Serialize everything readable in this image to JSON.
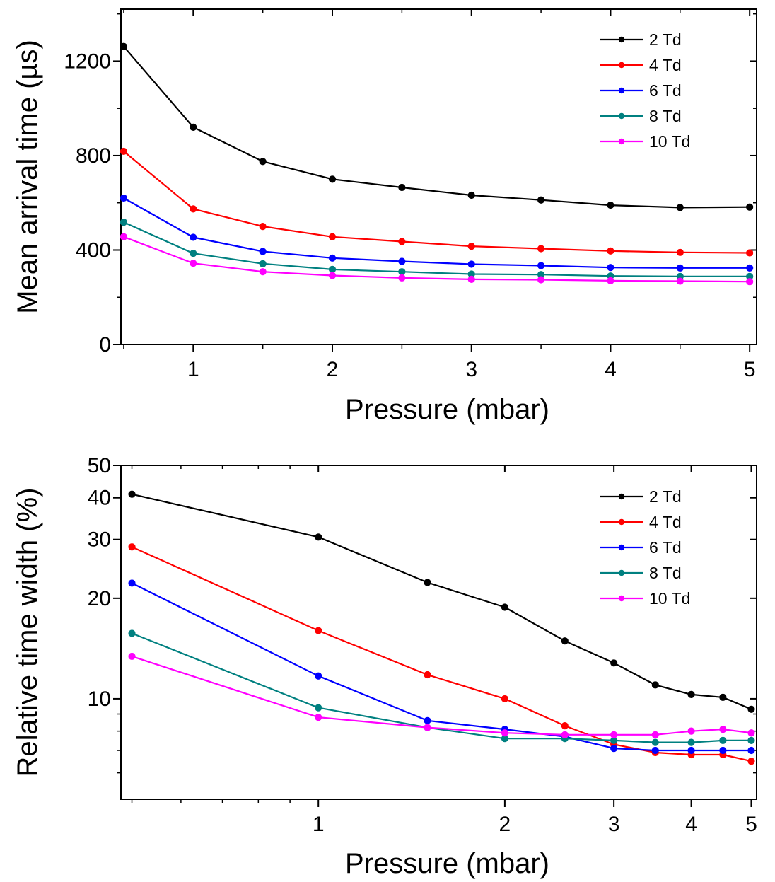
{
  "chart_data": [
    {
      "type": "line",
      "title": "",
      "xlabel": "Pressure (mbar)",
      "ylabel": "Mean arrival time (µs)",
      "xscale": "linear",
      "yscale": "linear",
      "xlim": [
        0.48,
        5.05
      ],
      "ylim": [
        0,
        1420
      ],
      "xticks": [
        1,
        2,
        3,
        4,
        5
      ],
      "xtick_labels": [
        "1",
        "2",
        "3",
        "4",
        "5"
      ],
      "yticks": [
        0,
        400,
        800,
        1200
      ],
      "ytick_labels": [
        "0",
        "400",
        "800",
        "1200"
      ],
      "legend_position": "top-right",
      "grid": false,
      "x": [
        0.5,
        1,
        1.5,
        2,
        2.5,
        3,
        3.5,
        4,
        4.5,
        5
      ],
      "series": [
        {
          "name": "2 Td",
          "color": "#000000",
          "values": [
            1262,
            920,
            775,
            700,
            665,
            632,
            612,
            590,
            580,
            582
          ]
        },
        {
          "name": "4 Td",
          "color": "#ff0000",
          "values": [
            818,
            574,
            500,
            456,
            436,
            416,
            406,
            396,
            390,
            388
          ]
        },
        {
          "name": "6 Td",
          "color": "#0000ff",
          "values": [
            620,
            454,
            394,
            366,
            352,
            340,
            334,
            326,
            324,
            324
          ]
        },
        {
          "name": "8 Td",
          "color": "#008080",
          "values": [
            518,
            386,
            342,
            318,
            308,
            298,
            296,
            290,
            288,
            288
          ]
        },
        {
          "name": "10 Td",
          "color": "#ff00ff",
          "values": [
            456,
            344,
            308,
            292,
            282,
            276,
            274,
            270,
            268,
            266
          ]
        }
      ]
    },
    {
      "type": "line",
      "title": "",
      "xlabel": "Pressure (mbar)",
      "ylabel": "Relative time width (%)",
      "xscale": "log",
      "yscale": "log",
      "xlim": [
        0.48,
        5.1
      ],
      "ylim": [
        5,
        50
      ],
      "xticks": [
        1,
        2,
        3,
        4,
        5
      ],
      "xtick_labels": [
        "1",
        "2",
        "3",
        "4",
        "5"
      ],
      "yticks": [
        10,
        20,
        30,
        40,
        50
      ],
      "ytick_labels": [
        "10",
        "20",
        "30",
        "40",
        "50"
      ],
      "legend_position": "top-right",
      "grid": false,
      "x": [
        0.5,
        1,
        1.5,
        2,
        2.5,
        3,
        3.5,
        4,
        4.5,
        5
      ],
      "series": [
        {
          "name": "2 Td",
          "color": "#000000",
          "values": [
            41,
            30.5,
            22.3,
            18.8,
            14.9,
            12.8,
            11.0,
            10.3,
            10.1,
            9.3
          ]
        },
        {
          "name": "4 Td",
          "color": "#ff0000",
          "values": [
            28.5,
            16.0,
            11.8,
            10.0,
            8.3,
            7.3,
            6.9,
            6.8,
            6.8,
            6.5
          ]
        },
        {
          "name": "6 Td",
          "color": "#0000ff",
          "values": [
            22.2,
            11.7,
            8.6,
            8.1,
            7.7,
            7.1,
            7.0,
            7.0,
            7.0,
            7.0
          ]
        },
        {
          "name": "8 Td",
          "color": "#008080",
          "values": [
            15.7,
            9.4,
            8.2,
            7.6,
            7.6,
            7.5,
            7.4,
            7.4,
            7.5,
            7.5
          ]
        },
        {
          "name": "10 Td",
          "color": "#ff00ff",
          "values": [
            13.4,
            8.8,
            8.2,
            7.9,
            7.8,
            7.8,
            7.8,
            8.0,
            8.1,
            7.9
          ]
        }
      ]
    }
  ]
}
